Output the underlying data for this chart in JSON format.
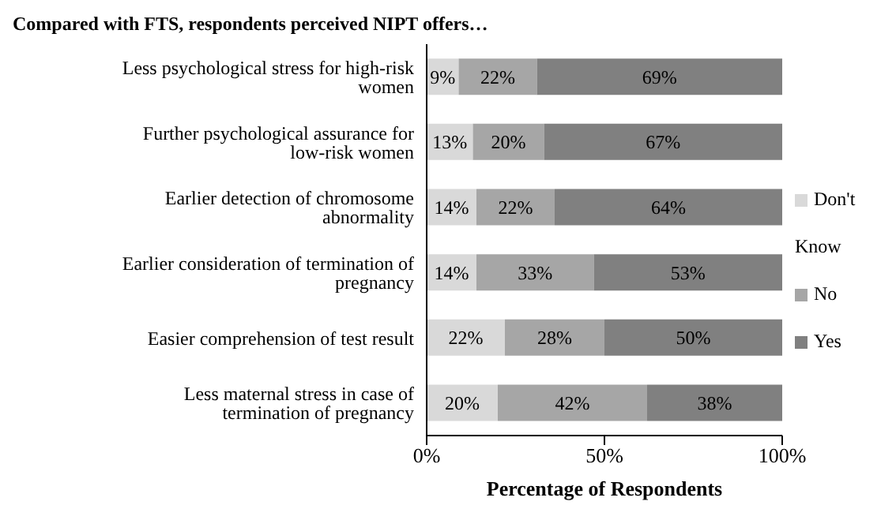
{
  "chart_data": {
    "type": "bar",
    "orientation": "horizontal",
    "stacked": true,
    "title": "Compared with FTS, respondents perceived NIPT offers…",
    "xlabel": "Percentage of Respondents",
    "categories": [
      "Less psychological stress for high-risk women",
      "Further psychological assurance for low-risk women",
      "Earlier detection of chromosome abnormality",
      "Earlier consideration of termination of pregnancy",
      "Easier comprehension of test result",
      "Less maternal stress in case of termination of pregnancy"
    ],
    "series": [
      {
        "name": "Don't Know",
        "color": "#d9d9d9",
        "values": [
          9,
          13,
          14,
          14,
          22,
          20
        ],
        "value_labels": [
          "9%",
          "13%",
          "14%",
          "14%",
          "22%",
          "20%"
        ]
      },
      {
        "name": "No",
        "color": "#a6a6a6",
        "values": [
          22,
          20,
          22,
          33,
          28,
          42
        ],
        "value_labels": [
          "22%",
          "20%",
          "22%",
          "33%",
          "28%",
          "42%"
        ]
      },
      {
        "name": "Yes",
        "color": "#808080",
        "values": [
          69,
          67,
          64,
          53,
          50,
          38
        ],
        "value_labels": [
          "69%",
          "67%",
          "64%",
          "53%",
          "50%",
          "38%"
        ]
      }
    ],
    "xlim": [
      0,
      100
    ],
    "xticks": [
      {
        "value": 0,
        "label": "0%"
      },
      {
        "value": 50,
        "label": "50%"
      },
      {
        "value": 100,
        "label": "100%"
      }
    ],
    "grid": false,
    "legend": "right"
  }
}
